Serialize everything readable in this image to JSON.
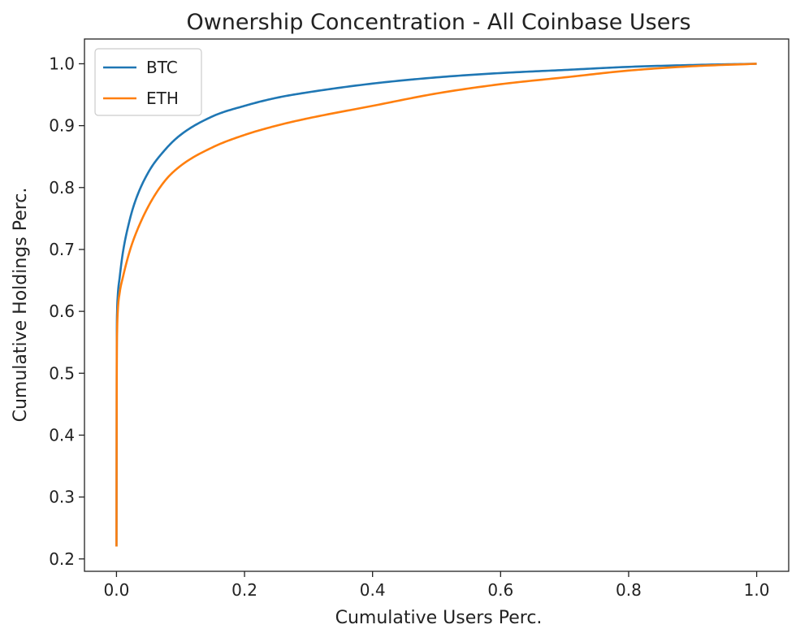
{
  "chart_data": {
    "type": "line",
    "title": "Ownership Concentration - All Coinbase Users",
    "xlabel": "Cumulative Users Perc.",
    "ylabel": "Cumulative Holdings Perc.",
    "xlim": [
      -0.05,
      1.05
    ],
    "ylim": [
      0.18,
      1.04
    ],
    "grid": false,
    "legend_position": "top-left",
    "x_ticks": [
      "0.0",
      "0.2",
      "0.4",
      "0.6",
      "0.8",
      "1.0"
    ],
    "y_ticks": [
      "0.2",
      "0.3",
      "0.4",
      "0.5",
      "0.6",
      "0.7",
      "0.8",
      "0.9",
      "1.0"
    ],
    "series": [
      {
        "name": "BTC",
        "color": "#1f77b4",
        "x": [
          0,
          0.0005,
          0.001,
          0.002,
          0.005,
          0.01,
          0.02,
          0.03,
          0.05,
          0.075,
          0.1,
          0.15,
          0.2,
          0.25,
          0.3,
          0.4,
          0.5,
          0.6,
          0.7,
          0.8,
          0.9,
          1.0
        ],
        "y": [
          0.22,
          0.55,
          0.6,
          0.625,
          0.655,
          0.695,
          0.745,
          0.78,
          0.825,
          0.86,
          0.885,
          0.915,
          0.932,
          0.945,
          0.954,
          0.968,
          0.978,
          0.985,
          0.99,
          0.995,
          0.998,
          1.0
        ]
      },
      {
        "name": "ETH",
        "color": "#ff7f0e",
        "x": [
          0,
          0.0005,
          0.001,
          0.002,
          0.005,
          0.01,
          0.02,
          0.03,
          0.05,
          0.075,
          0.1,
          0.15,
          0.2,
          0.25,
          0.3,
          0.4,
          0.5,
          0.6,
          0.7,
          0.8,
          0.9,
          1.0
        ],
        "y": [
          0.22,
          0.52,
          0.57,
          0.6,
          0.63,
          0.655,
          0.695,
          0.725,
          0.77,
          0.81,
          0.835,
          0.865,
          0.885,
          0.9,
          0.912,
          0.932,
          0.952,
          0.967,
          0.978,
          0.989,
          0.996,
          1.0
        ]
      }
    ]
  }
}
